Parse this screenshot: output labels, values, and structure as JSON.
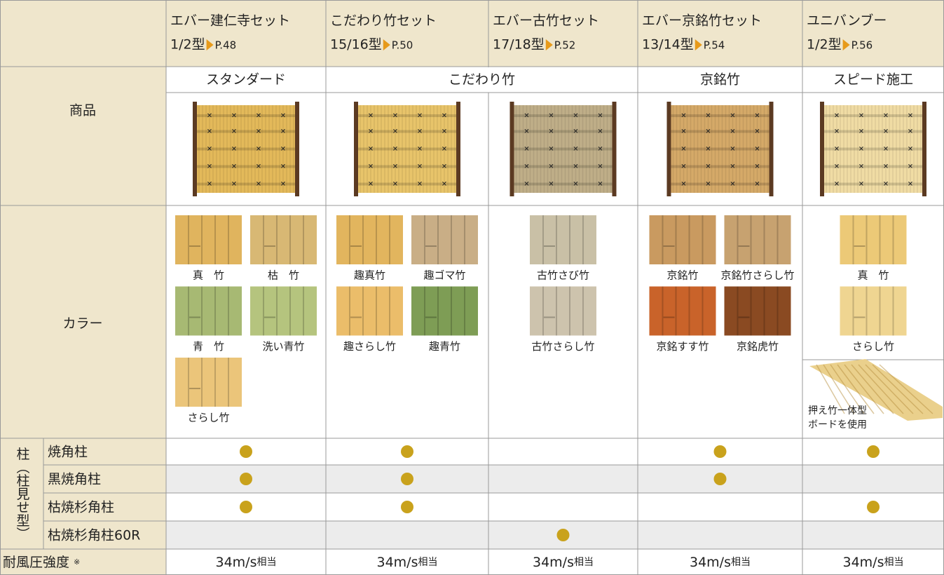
{
  "columns": [
    {
      "name": "エバー建仁寺セット",
      "type": "1/2型",
      "page": "P.48",
      "image_color": "#e3b95a",
      "colors": [
        {
          "name": "真　竹",
          "color": "#e0b45e"
        },
        {
          "name": "枯　竹",
          "color": "#d8b874"
        },
        {
          "name": "青　竹",
          "color": "#a7b973"
        },
        {
          "name": "洗い青竹",
          "color": "#b5c47e"
        },
        {
          "name": "さらし竹",
          "color": "#ebc57a"
        }
      ]
    },
    {
      "name": "こだわり竹セット",
      "type": "15/16型",
      "page": "P.50",
      "image_color": "#e8c46a",
      "colors": [
        {
          "name": "趣真竹",
          "color": "#e2b55e"
        },
        {
          "name": "趣ゴマ竹",
          "color": "#c9ae86"
        },
        {
          "name": "趣さらし竹",
          "color": "#ebbd6a"
        },
        {
          "name": "趣青竹",
          "color": "#7e9d55"
        }
      ]
    },
    {
      "name": "エバー古竹セット",
      "type": "17/18型",
      "page": "P.52",
      "image_color": "#bfae88",
      "colors": [
        {
          "name": "古竹さび竹",
          "color": "#c9c0a6"
        },
        {
          "name": "古竹さらし竹",
          "color": "#cdc3ad"
        }
      ]
    },
    {
      "name": "エバー京銘竹セット",
      "type": "13/14型",
      "page": "P.54",
      "image_color": "#d5a968",
      "colors": [
        {
          "name": "京銘竹",
          "color": "#c99a60"
        },
        {
          "name": "京銘竹さらし竹",
          "color": "#c7a270"
        },
        {
          "name": "京銘すす竹",
          "color": "#c9632a"
        },
        {
          "name": "京銘虎竹",
          "color": "#8a4a22"
        }
      ]
    },
    {
      "name": "ユニバンブー",
      "type": "1/2型",
      "page": "P.56",
      "image_color": "#f0dca4",
      "colors": [
        {
          "name": "真　竹",
          "color": "#ecc977"
        },
        {
          "name": "さらし竹",
          "color": "#efd591"
        }
      ],
      "board_note": [
        "押え竹一体型",
        "ボードを使用"
      ]
    }
  ],
  "categories": [
    "スタンダード",
    "こだわり竹",
    null,
    "京銘竹",
    "スピード施工"
  ],
  "row_labels": {
    "product": "商品",
    "color": "カラー"
  },
  "posts": {
    "label": "柱（柱見せ型）",
    "dot_color": "#c9a21c",
    "rows": [
      {
        "name": "焼角柱",
        "marks": [
          true,
          true,
          false,
          true,
          true
        ]
      },
      {
        "name": "黒焼角柱",
        "marks": [
          true,
          true,
          false,
          true,
          false
        ]
      },
      {
        "name": "枯焼杉角柱",
        "marks": [
          true,
          true,
          false,
          false,
          true
        ]
      },
      {
        "name": "枯焼杉角柱60R",
        "marks": [
          false,
          false,
          true,
          false,
          false
        ]
      }
    ]
  },
  "wind": {
    "label": "耐風圧強度",
    "note": "※",
    "values": [
      "34m/s",
      "34m/s",
      "34m/s",
      "34m/s",
      "34m/s"
    ],
    "suffix": "相当"
  }
}
